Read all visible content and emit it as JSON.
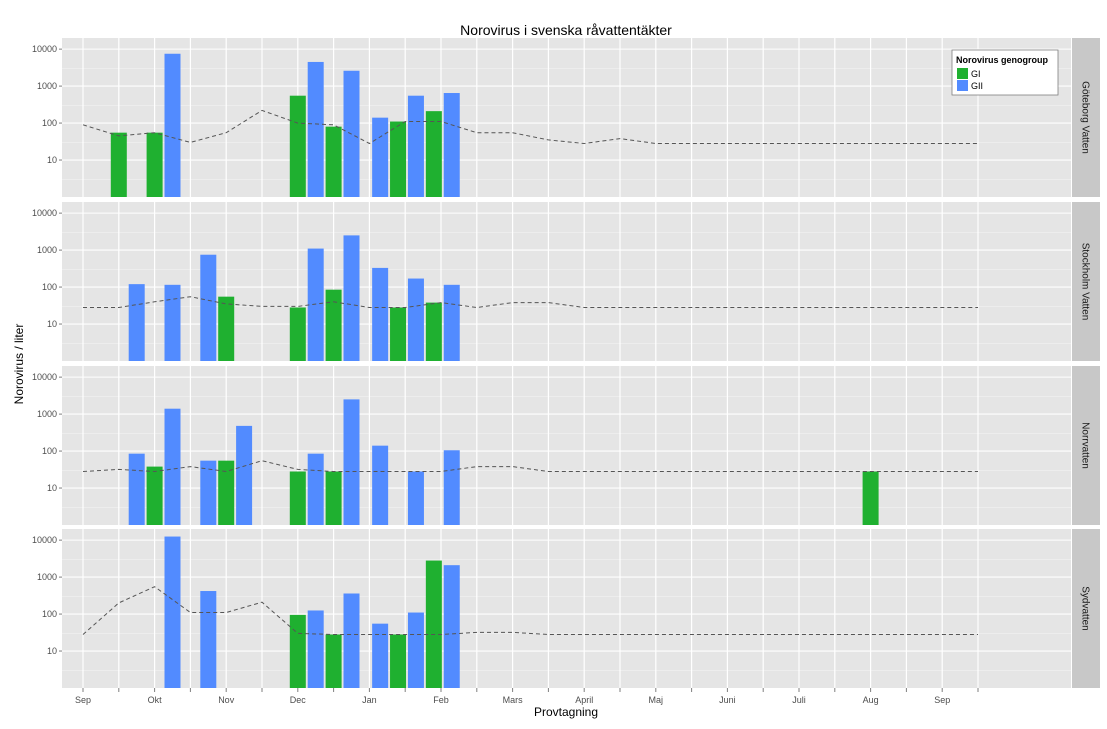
{
  "chart_data": {
    "type": "bar",
    "title": "Norovirus i svenska råvattentäkter",
    "xlabel": "Provtagning",
    "ylabel": "Norovirus / liter",
    "y_scale": "log10",
    "ylim": [
      1,
      20000
    ],
    "y_ticks": [
      10,
      100,
      1000,
      10000
    ],
    "y_tick_labels": [
      "10",
      "100",
      "1000",
      "10000"
    ],
    "x_tick_labels": [
      "Sep",
      "Okt",
      "Nov",
      "Dec",
      "Jan",
      "Feb",
      "Mars",
      "April",
      "Maj",
      "Juni",
      "Juli",
      "Aug",
      "Sep"
    ],
    "x_minor_count": 26,
    "grid": true,
    "legend": {
      "title": "Norovirus genogroup",
      "position": "top-right",
      "entries": [
        {
          "label": "GI",
          "color": "#1fb030"
        },
        {
          "label": "GII",
          "color": "#528bff"
        }
      ]
    },
    "colors": {
      "GI": "#1fb030",
      "GII": "#528bff",
      "panel": "#e5e5e5",
      "strip": "#c8c8c8",
      "line": "#555555"
    },
    "panels": [
      {
        "name": "Göteborg Vatten",
        "GI": [
          [
            1.0,
            55
          ],
          [
            2.0,
            55
          ],
          [
            6.0,
            550
          ],
          [
            7.0,
            80
          ],
          [
            8.8,
            110
          ],
          [
            9.8,
            210
          ]
        ],
        "GII": [
          [
            2.5,
            7500
          ],
          [
            6.5,
            4500
          ],
          [
            7.5,
            2600
          ],
          [
            8.3,
            140
          ],
          [
            9.3,
            550
          ],
          [
            10.3,
            650
          ]
        ],
        "trend": [
          [
            0.0,
            90
          ],
          [
            1.0,
            45
          ],
          [
            2.0,
            55
          ],
          [
            3.0,
            30
          ],
          [
            4.0,
            55
          ],
          [
            5.0,
            220
          ],
          [
            6.0,
            100
          ],
          [
            7.0,
            90
          ],
          [
            8.0,
            28
          ],
          [
            9.0,
            110
          ],
          [
            10.0,
            110
          ],
          [
            11.0,
            55
          ],
          [
            12.0,
            55
          ],
          [
            13.0,
            35
          ],
          [
            14.0,
            28
          ],
          [
            15.0,
            38
          ],
          [
            16.0,
            28
          ],
          [
            25.0,
            28
          ]
        ]
      },
      {
        "name": "Stockholm Vatten",
        "GI": [
          [
            4.0,
            55
          ],
          [
            6.0,
            28
          ],
          [
            7.0,
            85
          ],
          [
            8.8,
            28
          ],
          [
            9.8,
            38
          ]
        ],
        "GII": [
          [
            1.5,
            120
          ],
          [
            2.5,
            115
          ],
          [
            3.5,
            750
          ],
          [
            6.5,
            1100
          ],
          [
            7.5,
            2500
          ],
          [
            8.3,
            330
          ],
          [
            9.3,
            170
          ],
          [
            10.3,
            115
          ]
        ],
        "trend": [
          [
            0.0,
            28
          ],
          [
            1.0,
            28
          ],
          [
            2.0,
            40
          ],
          [
            3.0,
            55
          ],
          [
            4.0,
            35
          ],
          [
            5.0,
            30
          ],
          [
            6.0,
            30
          ],
          [
            7.0,
            40
          ],
          [
            8.0,
            28
          ],
          [
            9.0,
            28
          ],
          [
            10.0,
            38
          ],
          [
            11.0,
            28
          ],
          [
            12.0,
            38
          ],
          [
            13.0,
            38
          ],
          [
            14.0,
            28
          ],
          [
            25.0,
            28
          ]
        ]
      },
      {
        "name": "Norrvatten",
        "GI": [
          [
            2.0,
            38
          ],
          [
            4.0,
            55
          ],
          [
            6.0,
            28
          ],
          [
            7.0,
            28
          ],
          [
            22.0,
            28
          ]
        ],
        "GII": [
          [
            1.5,
            85
          ],
          [
            2.5,
            1400
          ],
          [
            3.5,
            55
          ],
          [
            4.5,
            480
          ],
          [
            6.5,
            85
          ],
          [
            7.5,
            2500
          ],
          [
            8.3,
            140
          ],
          [
            9.3,
            28
          ],
          [
            10.3,
            105
          ]
        ],
        "trend": [
          [
            0.0,
            28
          ],
          [
            1.0,
            32
          ],
          [
            2.0,
            28
          ],
          [
            3.0,
            38
          ],
          [
            4.0,
            28
          ],
          [
            5.0,
            55
          ],
          [
            6.0,
            32
          ],
          [
            7.0,
            28
          ],
          [
            8.0,
            28
          ],
          [
            9.0,
            28
          ],
          [
            10.0,
            28
          ],
          [
            11.0,
            38
          ],
          [
            12.0,
            38
          ],
          [
            13.0,
            28
          ],
          [
            25.0,
            28
          ]
        ]
      },
      {
        "name": "Sydvatten",
        "GI": [
          [
            6.0,
            95
          ],
          [
            7.0,
            28
          ],
          [
            8.8,
            28
          ],
          [
            9.8,
            2800
          ]
        ],
        "GII": [
          [
            2.5,
            12500
          ],
          [
            3.5,
            420
          ],
          [
            6.5,
            125
          ],
          [
            7.5,
            360
          ],
          [
            8.3,
            55
          ],
          [
            9.3,
            110
          ],
          [
            10.3,
            2100
          ]
        ],
        "trend": [
          [
            0.0,
            28
          ],
          [
            1.0,
            200
          ],
          [
            2.0,
            550
          ],
          [
            3.0,
            110
          ],
          [
            4.0,
            110
          ],
          [
            5.0,
            210
          ],
          [
            6.0,
            30
          ],
          [
            7.0,
            28
          ],
          [
            8.0,
            28
          ],
          [
            9.0,
            28
          ],
          [
            10.0,
            28
          ],
          [
            11.0,
            32
          ],
          [
            12.0,
            32
          ],
          [
            13.0,
            28
          ],
          [
            25.0,
            28
          ]
        ]
      }
    ]
  }
}
